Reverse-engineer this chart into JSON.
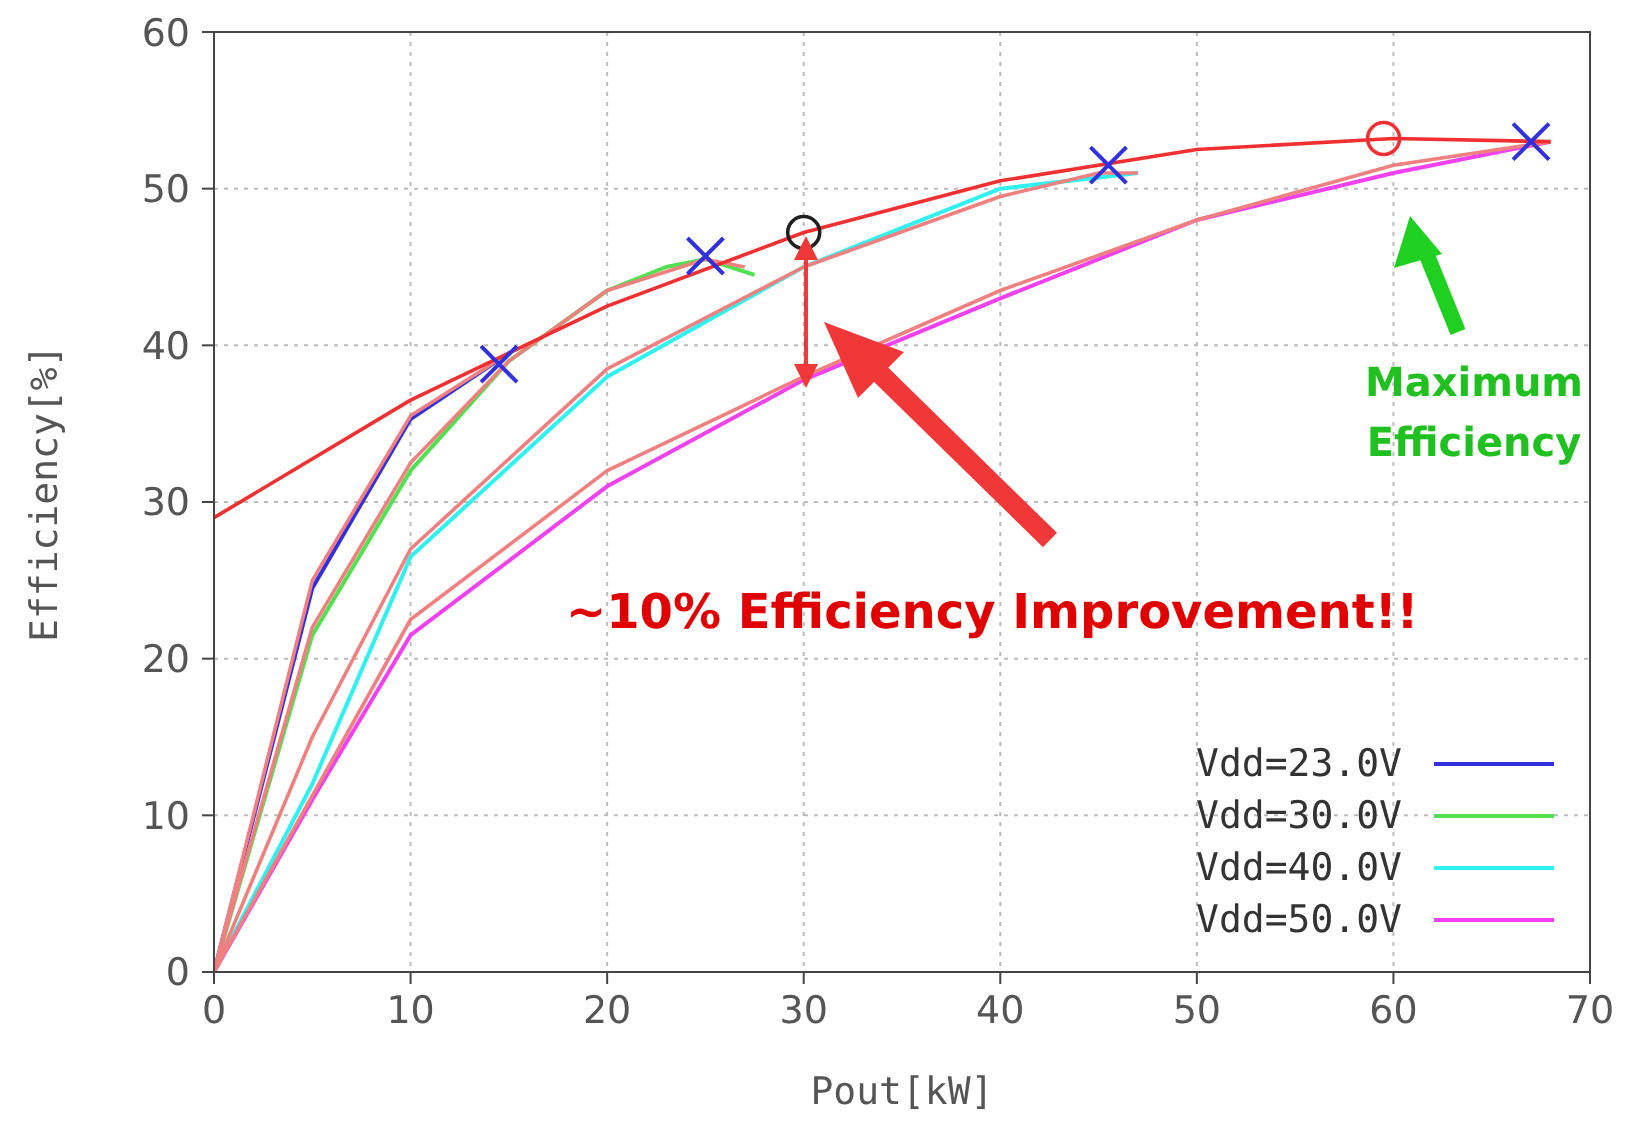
{
  "chart_data": {
    "type": "line",
    "xlabel": "Pout[kW]",
    "ylabel": "Efficiency[%]",
    "xlim": [
      0,
      70
    ],
    "ylim": [
      0,
      60
    ],
    "xticks": [
      0,
      10,
      20,
      30,
      40,
      50,
      60,
      70
    ],
    "yticks": [
      0,
      10,
      20,
      30,
      40,
      50,
      60
    ],
    "grid": true,
    "legend": "bottom right",
    "marker": "none",
    "line_style": "solid",
    "series": [
      {
        "name": "Vdd=23.0V",
        "color": "#3030e0",
        "x": [
          0,
          5,
          10,
          15
        ],
        "values": [
          0,
          24.5,
          35.3,
          39.5
        ]
      },
      {
        "name": "Vdd=30.0V",
        "color": "#50e050",
        "x": [
          0,
          5,
          10,
          15,
          20,
          23,
          25,
          27.5
        ],
        "values": [
          0,
          21.5,
          32,
          39,
          43.5,
          45,
          45.5,
          44.5
        ]
      },
      {
        "name": "Vdd=40.0V",
        "color": "#30f0f0",
        "x": [
          0,
          5,
          10,
          20,
          30,
          40,
          47
        ],
        "values": [
          0,
          12,
          26.5,
          38,
          45,
          50,
          51
        ]
      },
      {
        "name": "Vdd=50.0V",
        "color": "#f040f0",
        "x": [
          0,
          5,
          10,
          20,
          30,
          40,
          50,
          60,
          68
        ],
        "values": [
          0,
          11,
          21.5,
          31,
          37.8,
          43,
          48,
          51,
          53
        ]
      },
      {
        "color": "#f08080",
        "x": [
          0,
          2,
          5,
          10,
          15
        ],
        "values": [
          0,
          10,
          25,
          35.5,
          39.5
        ]
      },
      {
        "color": "#f08080",
        "x": [
          0,
          5,
          10,
          15,
          20,
          25,
          27
        ],
        "values": [
          0,
          22,
          32.5,
          39,
          43.5,
          45.5,
          45
        ]
      },
      {
        "color": "#f08080",
        "x": [
          0,
          5,
          10,
          20,
          30,
          40,
          45,
          47
        ],
        "values": [
          0,
          15,
          27,
          38.5,
          45,
          49.5,
          51,
          51
        ]
      },
      {
        "color": "#f08080",
        "x": [
          0,
          10,
          20,
          30,
          40,
          50,
          60,
          68
        ],
        "values": [
          0,
          22.5,
          32,
          38,
          43.5,
          48,
          51.5,
          53
        ]
      },
      {
        "color": "#f03030",
        "x": [
          0,
          10,
          20,
          30,
          40,
          50,
          60,
          68
        ],
        "values": [
          29,
          36.5,
          42.5,
          47.2,
          50.5,
          52.5,
          53.2,
          53
        ]
      },
      {
        "type": "scatter",
        "marker": "cross",
        "color": "#3030e0",
        "x": [
          14.5,
          25,
          45.5,
          67
        ],
        "values": [
          38.8,
          45.7,
          51.5,
          53
        ]
      },
      {
        "type": "scatter",
        "marker": "circle",
        "color": "#202020",
        "x": [
          30
        ],
        "values": [
          47.2
        ]
      },
      {
        "type": "scatter",
        "marker": "circle",
        "color": "#f03030",
        "x": [
          59.5
        ],
        "values": [
          53.2
        ]
      }
    ],
    "annotations": [
      "~10% Efficiency Improvement!!",
      "Maximum Efficiency"
    ]
  }
}
